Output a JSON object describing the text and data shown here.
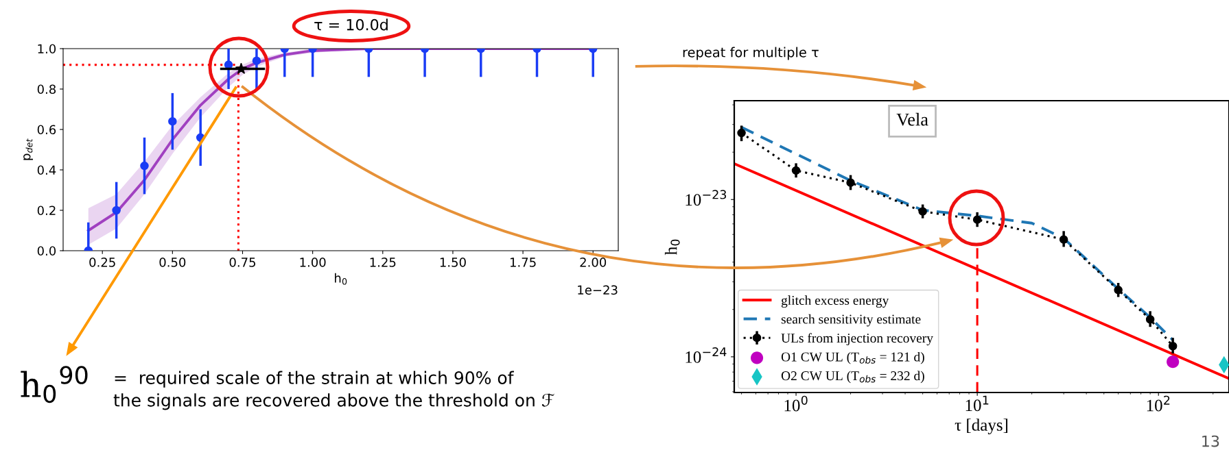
{
  "chart_data": [
    {
      "type": "scatter",
      "xlabel": "h$_{0}$",
      "ylabel": "p$_{det}$",
      "xlim": [
        0.11,
        2.09
      ],
      "ylim": [
        0,
        1
      ],
      "xticks": [
        {
          "value": 0.25,
          "label": "0.25"
        },
        {
          "value": 0.5,
          "label": "0.50"
        },
        {
          "value": 0.75,
          "label": "0.75"
        },
        {
          "value": 1.0,
          "label": "1.00"
        },
        {
          "value": 1.25,
          "label": "1.25"
        },
        {
          "value": 1.5,
          "label": "1.50"
        },
        {
          "value": 1.75,
          "label": "1.75"
        },
        {
          "value": 2.0,
          "label": "2.00"
        }
      ],
      "yticks": [
        {
          "value": 0,
          "label": "0.0"
        },
        {
          "value": 0.2,
          "label": "0.2"
        },
        {
          "value": 0.4,
          "label": "0.4"
        },
        {
          "value": 0.6,
          "label": "0.6"
        },
        {
          "value": 0.8,
          "label": "0.8"
        },
        {
          "value": 1.0,
          "label": "1.0"
        }
      ],
      "series": [
        {
          "type": "line",
          "color": "#a040c0",
          "x": [
            0.2,
            0.3,
            0.4,
            0.5,
            0.6,
            0.7,
            0.75,
            0.8,
            0.9,
            1.0,
            1.2,
            1.5,
            2.0
          ],
          "values": [
            0.1,
            0.19,
            0.35,
            0.55,
            0.72,
            0.85,
            0.9,
            0.93,
            0.97,
            0.99,
            1.0,
            1.0,
            1.0
          ],
          "lower": [
            0.03,
            0.11,
            0.28,
            0.48,
            0.66,
            0.81,
            0.87,
            0.91,
            0.96,
            0.98,
            1.0,
            1.0,
            1.0
          ],
          "upper": [
            0.21,
            0.28,
            0.44,
            0.62,
            0.76,
            0.88,
            0.92,
            0.95,
            0.98,
            1.0,
            1.0,
            1.0,
            1.0
          ]
        },
        {
          "type": "scatter",
          "color": "#1a3cf5",
          "marker": "circle",
          "x": [
            0.2,
            0.3,
            0.4,
            0.5,
            0.6,
            0.7,
            0.8,
            0.9,
            1.0,
            1.2,
            1.4,
            1.6,
            1.8,
            2.0
          ],
          "values": [
            0.0,
            0.2,
            0.42,
            0.64,
            0.56,
            0.92,
            0.94,
            1.0,
            1.0,
            1.0,
            1.0,
            1.0,
            1.0,
            1.0
          ],
          "errors": [
            [
              0,
              0.14
            ],
            [
              0.06,
              0.34
            ],
            [
              0.28,
              0.56
            ],
            [
              0.5,
              0.78
            ],
            [
              0.42,
              0.7
            ],
            [
              0.8,
              1.0
            ],
            [
              0.8,
              1.0
            ],
            [
              0.86,
              1.0
            ],
            [
              0.86,
              1.0
            ],
            [
              0.86,
              1.0
            ],
            [
              0.86,
              1.0
            ],
            [
              0.86,
              1.0
            ],
            [
              0.86,
              1.0
            ],
            [
              0.86,
              1.0
            ]
          ]
        },
        {
          "type": "scatter",
          "color": "#000000",
          "marker": "star",
          "x": [
            0.745
          ],
          "values": [
            0.9
          ],
          "xerrors": [
            [
              0.67,
              0.83
            ]
          ]
        }
      ],
      "ref_lines": [
        {
          "axis": "y",
          "value": 0.92,
          "color": "#ff0000",
          "line_style": "dotted"
        },
        {
          "axis": "x",
          "value": 0.735,
          "color": "#ff0000",
          "line_style": "dotted"
        }
      ],
      "annotations": [
        "τ = 10.0d",
        "1e−23",
        "h$_{0}$$^{90}$",
        "=  required scale of the strain at which 90% of\nthe signals are recovered above the threshold on ℱ"
      ]
    },
    {
      "type": "line",
      "log": "xy",
      "xlabel": "τ [days]",
      "ylabel": "h$_{0}$",
      "xlim": [
        0.456,
        245
      ],
      "ylim": [
        5.93e-25,
        4.25e-23
      ],
      "xticks": [
        {
          "value": 1,
          "label": "10$^{0}$"
        },
        {
          "value": 10,
          "label": "10$^{1}$"
        },
        {
          "value": 100,
          "label": "10$^{2}$"
        }
      ],
      "yticks": [
        {
          "value": 1e-24,
          "label": "10$^{−24}$"
        },
        {
          "value": 1e-23,
          "label": "10$^{−23}$"
        }
      ],
      "legend": "bottom left",
      "series": [
        {
          "name": "glitch excess energy",
          "color": "#ff0000",
          "line_style": "solid",
          "x": [
            0.456,
            245
          ],
          "values": [
            1.69e-23,
            7.28e-25
          ]
        },
        {
          "name": "search sensitivity estimate",
          "color": "#1f77b4",
          "line_style": "dashed",
          "x": [
            0.5,
            1,
            2,
            5,
            10,
            20,
            30,
            60,
            90,
            120
          ],
          "values": [
            2.88e-23,
            1.95e-23,
            1.32e-23,
            8.56e-24,
            7.87e-24,
            7.08e-24,
            5.67e-24,
            2.7e-24,
            1.78e-24,
            1.28e-24
          ]
        },
        {
          "name": "ULs from injection recovery",
          "color": "#000000",
          "line_style": "dotted",
          "marker": "circle",
          "x": [
            0.5,
            1,
            2,
            5,
            10,
            30,
            60,
            90,
            120
          ],
          "values": [
            2.65e-23,
            1.53e-23,
            1.28e-23,
            8.4e-24,
            7.45e-24,
            5.57e-24,
            2.66e-24,
            1.73e-24,
            1.17e-24
          ],
          "errors": [
            [
              2.35e-23,
              2.95e-23
            ],
            [
              1.38e-23,
              1.7e-23
            ],
            [
              1.15e-23,
              1.43e-23
            ],
            [
              7.6e-24,
              9.3e-24
            ],
            [
              6.7e-24,
              8.3e-24
            ],
            [
              5e-24,
              6.3e-24
            ],
            [
              2.4e-24,
              2.95e-24
            ],
            [
              1.55e-24,
              1.95e-24
            ],
            [
              1.05e-24,
              1.32e-24
            ]
          ]
        },
        {
          "name": "O1 CW UL (T$_{obs}$ = 121 d)",
          "type": "scatter",
          "color": "#c000c0",
          "marker": "circle",
          "x": [
            120
          ],
          "values": [
            9.3e-25
          ]
        },
        {
          "name": "O2 CW UL (T$_{obs}$ = 232 d)",
          "type": "scatter",
          "color": "#17c5c5",
          "marker": "diamond",
          "x": [
            230
          ],
          "values": [
            8.9e-25
          ]
        }
      ],
      "ref_lines": [
        {
          "axis": "x",
          "value": 10,
          "color": "#ff0000",
          "line_style": "dashed"
        }
      ],
      "annotations": [
        "Vela",
        "repeat for multiple τ",
        "13"
      ]
    }
  ]
}
